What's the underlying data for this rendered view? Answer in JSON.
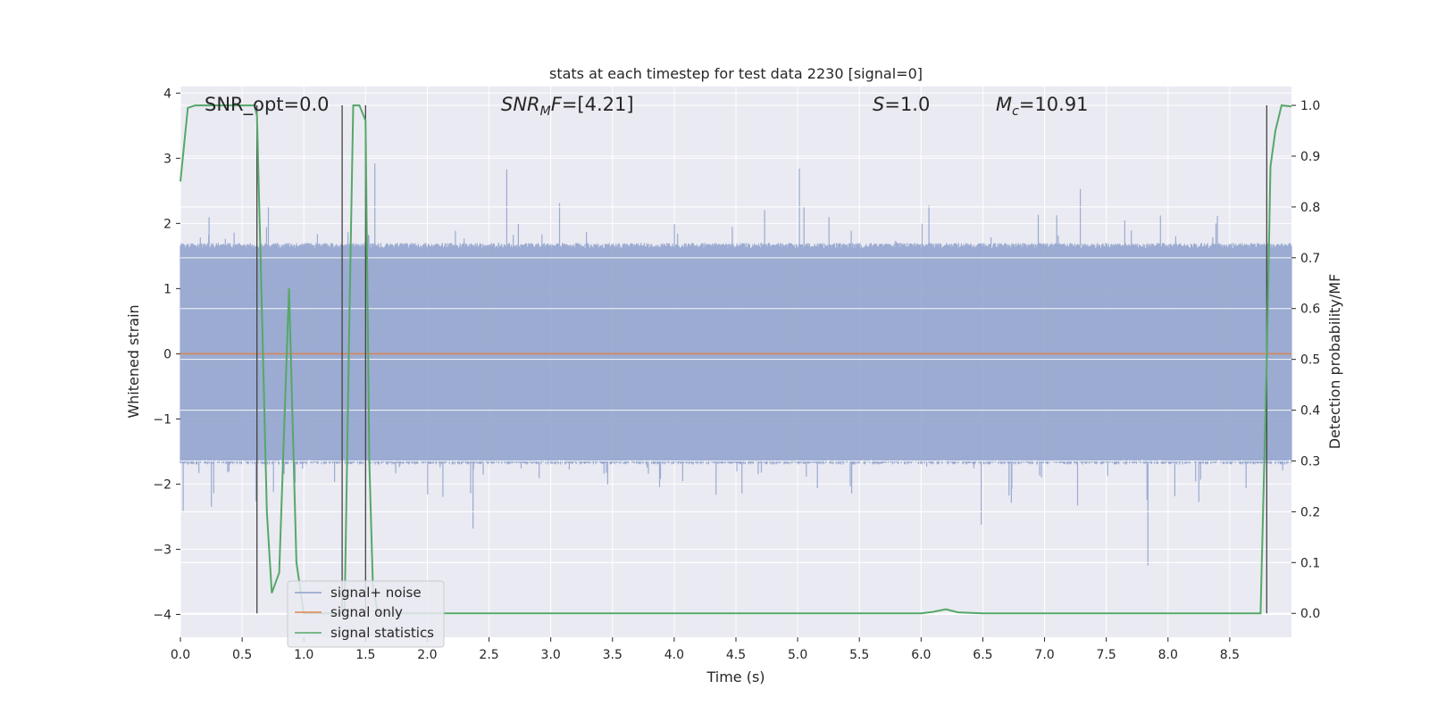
{
  "chart_data": {
    "type": "line",
    "title": "stats at each timestep for test data 2230 [signal=0]",
    "xlabel": "Time (s)",
    "ylabel_left": "Whitened strain",
    "ylabel_right": "Detection probability/MF",
    "xlim": [
      0.0,
      9.0
    ],
    "ylim_left": [
      -4.35,
      4.1
    ],
    "ylim_right": [
      -0.047,
      1.037
    ],
    "x_ticks": [
      "0.0",
      "0.5",
      "1.0",
      "1.5",
      "2.0",
      "2.5",
      "3.0",
      "3.5",
      "4.0",
      "4.5",
      "5.0",
      "5.5",
      "6.0",
      "6.5",
      "7.0",
      "7.5",
      "8.0",
      "8.5"
    ],
    "y_ticks_left": [
      "−4",
      "−3",
      "−2",
      "−1",
      "0",
      "1",
      "2",
      "3",
      "4"
    ],
    "y_ticks_right": [
      "0.0",
      "0.1",
      "0.2",
      "0.3",
      "0.4",
      "0.5",
      "0.6",
      "0.7",
      "0.8",
      "0.9",
      "1.0"
    ],
    "grid": true,
    "legend_position": "lower-left",
    "annotations": {
      "snr_opt": "SNR_opt=0.0",
      "snr_mf": "=[4.21]",
      "s": "=1.0",
      "mc": "=10.91"
    },
    "series": [
      {
        "name": "signal+ noise",
        "color": "#8da0cb",
        "description_values": "dense whitened strain noise, mostly within ±1.7 with spikes to about ±3.8",
        "typical_range": [
          -1.7,
          1.7
        ],
        "peak_range": [
          -4.0,
          3.75
        ]
      },
      {
        "name": "signal only",
        "color": "#dd8452",
        "x": [
          0.0,
          9.0
        ],
        "y": [
          0.0,
          0.0
        ]
      },
      {
        "name": "signal statistics",
        "color": "#55a868",
        "x": [
          0.0,
          0.06,
          0.12,
          0.2,
          0.3,
          0.4,
          0.5,
          0.6,
          0.62,
          0.66,
          0.7,
          0.74,
          0.8,
          0.88,
          0.94,
          1.0,
          1.1,
          1.2,
          1.3,
          1.33,
          1.37,
          1.4,
          1.45,
          1.5,
          1.53,
          1.56,
          1.6,
          2.0,
          3.0,
          4.0,
          5.0,
          6.0,
          6.1,
          6.2,
          6.3,
          6.5,
          7.0,
          8.0,
          8.75,
          8.8,
          8.83,
          8.87,
          8.92,
          9.0
        ],
        "y": [
          0.85,
          0.995,
          1.0,
          1.0,
          1.0,
          1.0,
          1.0,
          1.0,
          0.98,
          0.6,
          0.2,
          0.04,
          0.08,
          0.64,
          0.1,
          0.0,
          0.0,
          0.0,
          0.0,
          0.0,
          0.6,
          1.0,
          1.0,
          0.97,
          0.3,
          0.05,
          0.0,
          0.0,
          0.0,
          0.0,
          0.0,
          0.0,
          0.003,
          0.008,
          0.002,
          0.0,
          0.0,
          0.0,
          0.0,
          0.5,
          0.88,
          0.95,
          1.0,
          0.998
        ]
      }
    ],
    "vertical_markers_x": [
      0.62,
      1.31,
      1.5,
      8.8
    ]
  }
}
